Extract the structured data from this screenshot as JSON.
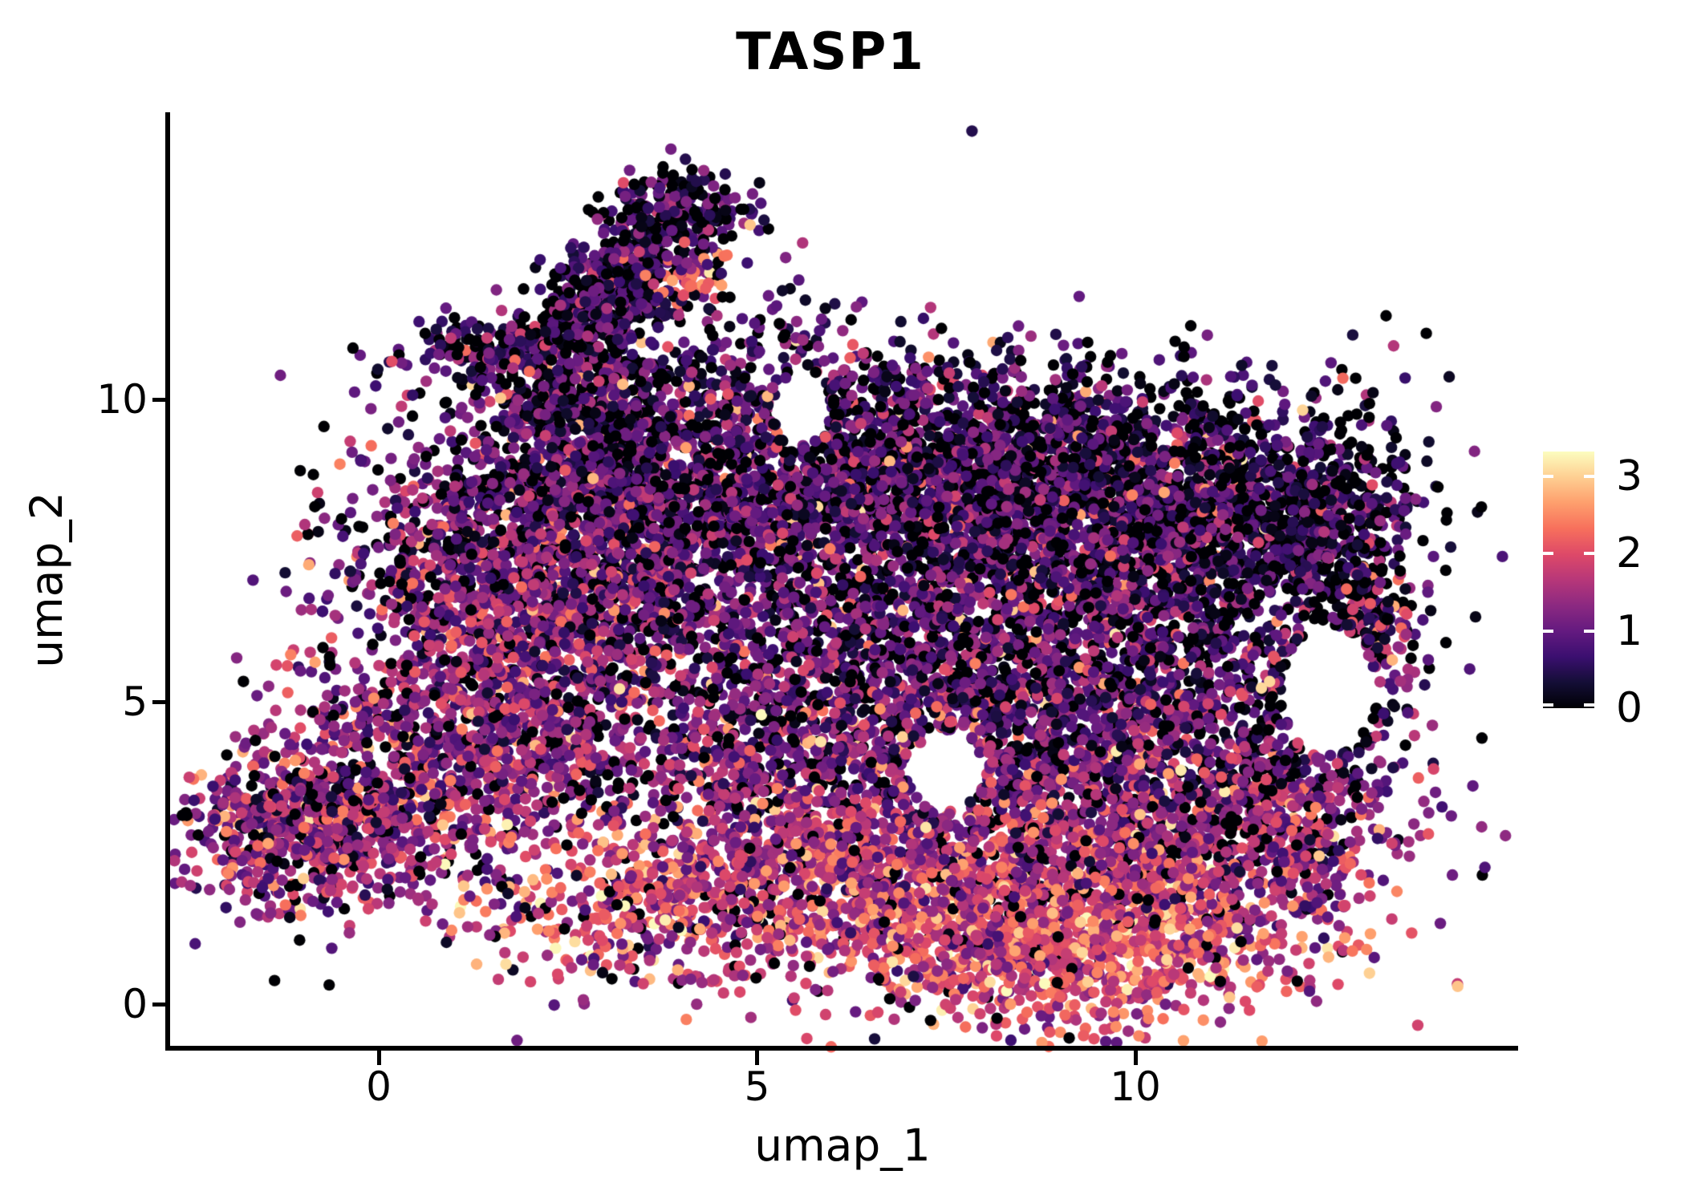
{
  "chart_data": {
    "type": "scatter",
    "title": "TASP1",
    "xlabel": "umap_1",
    "ylabel": "umap_2",
    "x_ticks": [
      0,
      5,
      10
    ],
    "y_ticks": [
      0,
      5,
      10
    ],
    "xlim": [
      -2.78,
      15.0
    ],
    "ylim": [
      -0.73,
      14.75
    ],
    "legend_position": "right",
    "grid": false,
    "colorbar": {
      "vmin": 0,
      "vmax": 3.32,
      "tick_values": [
        0,
        1,
        2,
        3
      ],
      "tick_labels": [
        "0",
        "1",
        "2",
        "3"
      ],
      "colormap": "magma",
      "tick_color": "#ffffff",
      "stops": [
        {
          "t": 0.0,
          "color": "#000004"
        },
        {
          "t": 0.1,
          "color": "#140e36"
        },
        {
          "t": 0.2,
          "color": "#3b0f70"
        },
        {
          "t": 0.3,
          "color": "#641a80"
        },
        {
          "t": 0.4,
          "color": "#8c2981"
        },
        {
          "t": 0.5,
          "color": "#b73779"
        },
        {
          "t": 0.6,
          "color": "#de4968"
        },
        {
          "t": 0.7,
          "color": "#f7705c"
        },
        {
          "t": 0.8,
          "color": "#fe9f6d"
        },
        {
          "t": 0.9,
          "color": "#fecf92"
        },
        {
          "t": 1.0,
          "color": "#fcfdbf"
        }
      ]
    },
    "point_radius_px": 7.2,
    "seed": 42,
    "zero_value_color": "#000004",
    "bounds": {
      "xmin": -2.72,
      "xmax": 14.9,
      "ymin": -0.72,
      "ymax": 14.7
    },
    "exclusions": [
      {
        "cx": 12.55,
        "cy": 5.2,
        "rx": 0.62,
        "ry": 1.05
      },
      {
        "cx": 7.5,
        "cy": 3.85,
        "rx": 0.5,
        "ry": 0.65
      },
      {
        "cx": 5.6,
        "cy": 9.85,
        "rx": 0.38,
        "ry": 0.6
      }
    ],
    "clusters": [
      {
        "name": "arm-main",
        "n": 650,
        "cx": 3.05,
        "cy": 11.75,
        "sx": 0.85,
        "sy": 0.38,
        "rot": 54.7,
        "mean": 0.75,
        "sd": 0.5,
        "p0": 0.32
      },
      {
        "name": "arm-tip",
        "n": 170,
        "cx": 4.0,
        "cy": 13.1,
        "sx": 0.5,
        "sy": 0.33,
        "rot": 0,
        "mean": 0.7,
        "sd": 0.5,
        "p0": 0.34
      },
      {
        "name": "arm-west-spur",
        "n": 130,
        "cx": 1.35,
        "cy": 10.85,
        "sx": 0.5,
        "sy": 0.3,
        "rot": 0,
        "mean": 0.85,
        "sd": 0.5,
        "p0": 0.3
      },
      {
        "name": "arm-orange-pocket",
        "n": 45,
        "cx": 4.15,
        "cy": 11.95,
        "sx": 0.32,
        "sy": 0.22,
        "rot": 30,
        "mean": 2.2,
        "sd": 0.5,
        "p0": 0.04
      },
      {
        "name": "arm-connector",
        "n": 240,
        "cx": 2.7,
        "cy": 9.95,
        "sx": 0.65,
        "sy": 0.45,
        "rot": 0,
        "mean": 0.95,
        "sd": 0.55,
        "p0": 0.26
      },
      {
        "name": "arm-east-sparse",
        "n": 80,
        "cx": 4.8,
        "cy": 11.2,
        "sx": 0.7,
        "sy": 0.75,
        "rot": 0,
        "mean": 0.7,
        "sd": 0.5,
        "p0": 0.35
      },
      {
        "name": "top-fringe",
        "n": 230,
        "cx": 6.2,
        "cy": 10.25,
        "sx": 2.3,
        "sy": 0.45,
        "rot": 0,
        "mean": 0.85,
        "sd": 0.55,
        "p0": 0.3
      },
      {
        "name": "upper-left",
        "n": 1350,
        "cx": 3.1,
        "cy": 8.4,
        "sx": 1.5,
        "sy": 1.05,
        "rot": 0,
        "mean": 0.95,
        "sd": 0.55,
        "p0": 0.24
      },
      {
        "name": "top-mid",
        "n": 1400,
        "cx": 6.4,
        "cy": 8.9,
        "sx": 2.0,
        "sy": 0.85,
        "rot": 0,
        "mean": 0.85,
        "sd": 0.5,
        "p0": 0.28
      },
      {
        "name": "top-right",
        "n": 1500,
        "cx": 9.4,
        "cy": 8.4,
        "sx": 1.7,
        "sy": 0.95,
        "rot": 0,
        "mean": 0.9,
        "sd": 0.55,
        "p0": 0.26
      },
      {
        "name": "far-right-top",
        "n": 800,
        "cx": 11.5,
        "cy": 8.1,
        "sx": 1.0,
        "sy": 0.85,
        "rot": 0,
        "mean": 0.65,
        "sd": 0.45,
        "p0": 0.36
      },
      {
        "name": "right-edge-ring",
        "n": 330,
        "cx": 12.85,
        "cy": 6.9,
        "sx": 0.42,
        "sy": 1.4,
        "rot": 0,
        "mean": 0.7,
        "sd": 0.6,
        "p0": 0.34
      },
      {
        "name": "right-edge-pink",
        "n": 60,
        "cx": 13.1,
        "cy": 6.3,
        "sx": 0.25,
        "sy": 0.5,
        "rot": 0,
        "mean": 1.7,
        "sd": 0.6,
        "p0": 0.1
      },
      {
        "name": "left-lobe",
        "n": 1150,
        "cx": 1.6,
        "cy": 6.5,
        "sx": 1.15,
        "sy": 1.15,
        "rot": 0,
        "mean": 1.3,
        "sd": 0.6,
        "p0": 0.15
      },
      {
        "name": "mid-center",
        "n": 1500,
        "cx": 5.9,
        "cy": 6.2,
        "sx": 2.0,
        "sy": 1.25,
        "rot": 0,
        "mean": 1.0,
        "sd": 0.55,
        "p0": 0.2
      },
      {
        "name": "mid-right",
        "n": 1150,
        "cx": 9.4,
        "cy": 5.9,
        "sx": 1.6,
        "sy": 1.15,
        "rot": 0,
        "mean": 0.95,
        "sd": 0.55,
        "p0": 0.22
      },
      {
        "name": "left-chin",
        "n": 330,
        "cx": 1.6,
        "cy": 4.3,
        "sx": 0.75,
        "sy": 0.7,
        "rot": 0,
        "mean": 1.4,
        "sd": 0.6,
        "p0": 0.12
      },
      {
        "name": "lower-mid",
        "n": 950,
        "cx": 5.4,
        "cy": 4.1,
        "sx": 2.1,
        "sy": 0.95,
        "rot": 0,
        "mean": 1.3,
        "sd": 0.6,
        "p0": 0.13
      },
      {
        "name": "lower-right",
        "n": 850,
        "cx": 9.2,
        "cy": 3.7,
        "sx": 1.7,
        "sy": 1.0,
        "rot": 0,
        "mean": 1.1,
        "sd": 0.6,
        "p0": 0.17
      },
      {
        "name": "right-diag",
        "n": 550,
        "cx": 11.4,
        "cy": 2.9,
        "sx": 1.0,
        "sy": 0.95,
        "rot": 40,
        "mean": 1.4,
        "sd": 0.6,
        "p0": 0.12
      },
      {
        "name": "right-mid-outer",
        "n": 240,
        "cx": 12.35,
        "cy": 4.7,
        "sx": 0.6,
        "sy": 0.75,
        "rot": 0,
        "mean": 1.0,
        "sd": 0.6,
        "p0": 0.25
      },
      {
        "name": "bottom-band",
        "n": 1500,
        "cx": 8.2,
        "cy": 1.7,
        "sx": 2.2,
        "sy": 0.95,
        "rot": 0,
        "mean": 1.8,
        "sd": 0.6,
        "p0": 0.06
      },
      {
        "name": "bottom-core",
        "n": 650,
        "cx": 9.2,
        "cy": 0.95,
        "sx": 1.25,
        "sy": 0.6,
        "rot": 0,
        "mean": 2.1,
        "sd": 0.55,
        "p0": 0.04
      },
      {
        "name": "bottom-left-warm",
        "n": 450,
        "cx": 5.2,
        "cy": 2.3,
        "sx": 1.2,
        "sy": 0.75,
        "rot": 0,
        "mean": 1.7,
        "sd": 0.6,
        "p0": 0.08
      },
      {
        "name": "bottom-left-trail",
        "n": 220,
        "cx": 3.1,
        "cy": 1.4,
        "sx": 0.95,
        "sy": 0.6,
        "rot": 0,
        "mean": 1.9,
        "sd": 0.65,
        "p0": 0.08
      },
      {
        "name": "left-blob",
        "n": 850,
        "cx": -0.8,
        "cy": 3.0,
        "sx": 0.85,
        "sy": 0.72,
        "rot": 0,
        "mean": 1.35,
        "sd": 0.6,
        "p0": 0.12
      },
      {
        "name": "left-blob-spur",
        "n": 70,
        "cx": -0.15,
        "cy": 4.85,
        "sx": 0.4,
        "sy": 0.28,
        "rot": 0,
        "mean": 1.2,
        "sd": 0.55,
        "p0": 0.15
      },
      {
        "name": "bridge",
        "n": 160,
        "cx": 1.35,
        "cy": 2.7,
        "sx": 0.8,
        "sy": 0.85,
        "rot": 0,
        "mean": 1.55,
        "sd": 0.7,
        "p0": 0.1
      },
      {
        "name": "stray-noise",
        "n": 180,
        "cx": 6.5,
        "cy": 6.5,
        "sx": 3.6,
        "sy": 2.6,
        "rot": 0,
        "mean": 0.9,
        "sd": 0.6,
        "p0": 0.25
      }
    ]
  }
}
